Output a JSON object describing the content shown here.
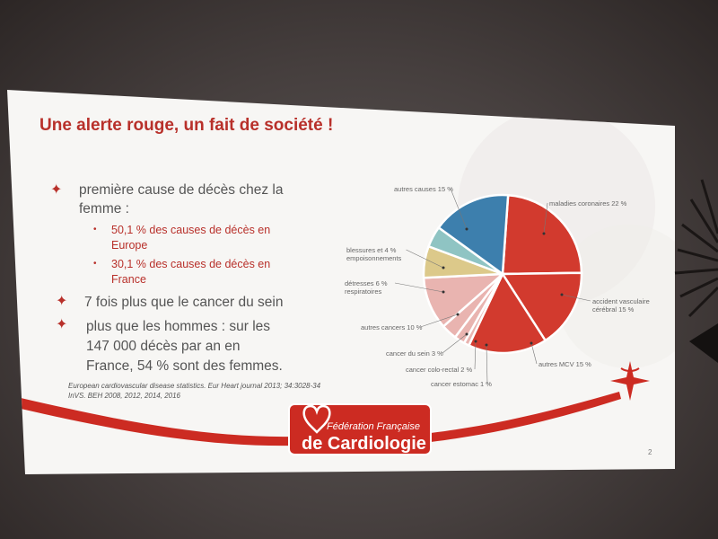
{
  "slide": {
    "title": "Une alerte rouge, un fait de société !",
    "bullets": [
      {
        "lines": [
          "première cause de décès chez la",
          "femme :"
        ],
        "sub": [
          {
            "lines": [
              "50,1 % des causes de décès en",
              "Europe"
            ]
          },
          {
            "lines": [
              "30,1 % des causes de décès en",
              "France"
            ]
          }
        ]
      },
      {
        "lines": [
          "7 fois plus que le cancer du sein"
        ]
      },
      {
        "lines": [
          "plus que les hommes : sur les",
          "147 000 décès par an en",
          "France, 54 % sont des femmes."
        ]
      }
    ],
    "citation": [
      "European cardiovascular disease statistics. Eur Heart journal 2013; 34:3028-34",
      "InVS. BEH 2008, 2012, 2014, 2016"
    ],
    "page_number": "2",
    "logo": {
      "line1": "Fédération Française",
      "line2": "de Cardiologie"
    }
  },
  "chart_data": {
    "type": "pie",
    "slices": [
      {
        "label": "maladies coronaires",
        "value": 22,
        "text": "maladies coronaires 22 %",
        "color": "#d23a2e"
      },
      {
        "label": "accident vasculaire cérébral",
        "value": 15,
        "text": [
          "accident vasculaire",
          "cérébral 15 %"
        ],
        "color": "#d23a2e"
      },
      {
        "label": "autres MCV",
        "value": 15,
        "text": "autres MCV 15 %",
        "color": "#d23a2e"
      },
      {
        "label": "cancer estomac",
        "value": 1,
        "text": "cancer estomac 1 %",
        "color": "#e9b4b0"
      },
      {
        "label": "cancer colo-rectal",
        "value": 2,
        "text": "cancer colo-rectal 2 %",
        "color": "#e9b4b0"
      },
      {
        "label": "cancer du sein",
        "value": 3,
        "text": "cancer du sein 3 %",
        "color": "#e9b4b0"
      },
      {
        "label": "autres cancers",
        "value": 10,
        "text": "autres cancers 10 %",
        "color": "#e9b4b0"
      },
      {
        "label": "détresses respiratoires",
        "value": 6,
        "text": [
          "détresses    6 %",
          "respiratoires"
        ],
        "color": "#dcc98a"
      },
      {
        "label": "blessures et empoisonnements",
        "value": 4,
        "text": [
          "blessures et    4 %",
          "empoisonnements"
        ],
        "color": "#8fc4c3"
      },
      {
        "label": "autres causes",
        "value": 15,
        "text": "autres causes 15 %",
        "color": "#3d7fad"
      }
    ]
  }
}
